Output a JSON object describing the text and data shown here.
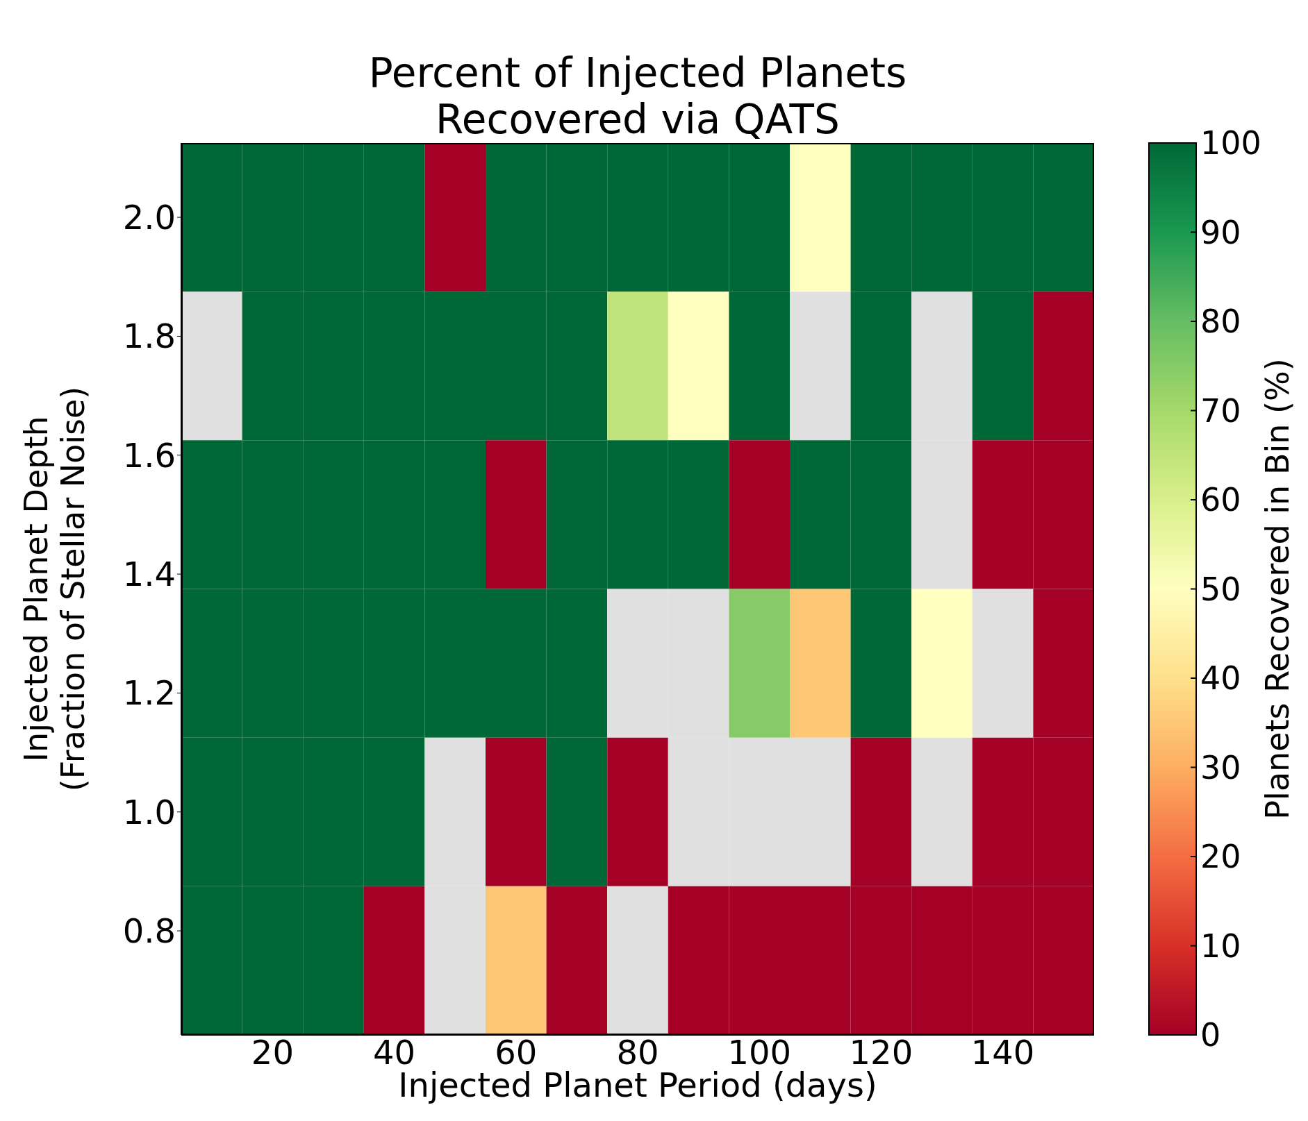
{
  "chart_data": {
    "type": "heatmap",
    "title": "Percent of Injected Planets\nRecovered via QATS",
    "xlabel": "Injected Planet Period (days)",
    "ylabel": "Injected Planet Depth\n(Fraction of Stellar Noise)",
    "clabel": "Planets Recovered in Bin (%)",
    "categories": [
      null,
      "20",
      null,
      "40",
      null,
      "60",
      null,
      "80",
      null,
      "100",
      null,
      "120",
      null,
      "140",
      null
    ],
    "ylim": [
      0.625,
      2.125
    ],
    "yticks": [
      {
        "value": 0.8,
        "label": "0.8"
      },
      {
        "value": 1.0,
        "label": "1.0"
      },
      {
        "value": 1.2,
        "label": "1.2"
      },
      {
        "value": 1.4,
        "label": "1.4"
      },
      {
        "value": 1.6,
        "label": "1.6"
      },
      {
        "value": 1.8,
        "label": "1.8"
      },
      {
        "value": 2.0,
        "label": "2.0"
      }
    ],
    "clim": [
      0,
      100
    ],
    "cticks": [
      0,
      10,
      20,
      30,
      40,
      50,
      60,
      70,
      80,
      90,
      100
    ],
    "cells": [
      [
        100,
        100,
        100,
        100,
        0,
        100,
        100,
        100,
        100,
        100,
        50,
        100,
        100,
        100,
        100
      ],
      [
        null,
        100,
        100,
        100,
        100,
        100,
        100,
        65,
        50,
        100,
        null,
        100,
        null,
        100,
        0
      ],
      [
        100,
        100,
        100,
        100,
        100,
        0,
        100,
        100,
        100,
        0,
        100,
        100,
        null,
        0,
        0
      ],
      [
        100,
        100,
        100,
        100,
        100,
        100,
        100,
        null,
        null,
        75,
        35,
        100,
        50,
        null,
        0
      ],
      [
        100,
        100,
        100,
        100,
        null,
        0,
        100,
        0,
        null,
        null,
        null,
        0,
        null,
        0,
        0
      ],
      [
        100,
        100,
        100,
        0,
        null,
        35,
        0,
        null,
        0,
        0,
        0,
        0,
        0,
        0,
        0
      ]
    ]
  }
}
